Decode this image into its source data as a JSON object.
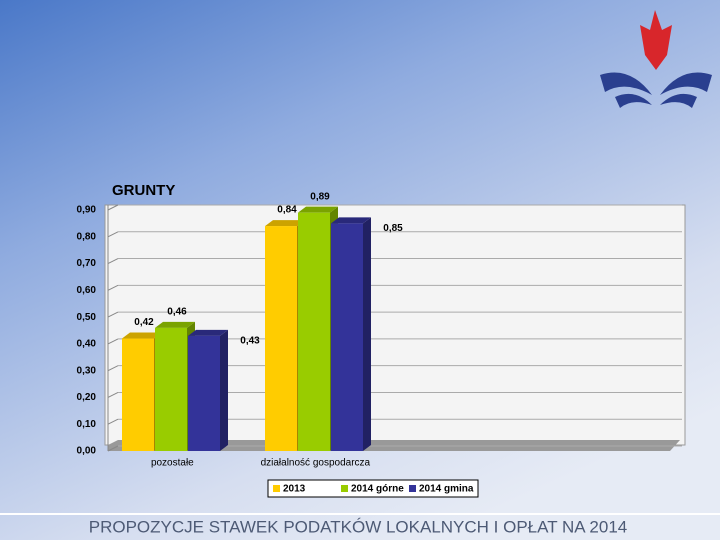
{
  "chart_data": {
    "type": "bar",
    "title": "GRUNTY",
    "categories": [
      "pozostałe",
      "działalność gospodarcza"
    ],
    "series": [
      {
        "name": "2013",
        "color": "#ffcc00",
        "values": [
          0.42,
          0.84
        ],
        "value_labels": [
          "0,42",
          "0,84"
        ]
      },
      {
        "name": "2014 górne",
        "color": "#99cc00",
        "values": [
          0.46,
          0.89
        ],
        "value_labels": [
          "0,46",
          "0,89"
        ]
      },
      {
        "name": "2014 gmina",
        "color": "#333399",
        "values": [
          0.43,
          0.85
        ],
        "value_labels": [
          "0,43",
          "0,85"
        ]
      }
    ],
    "ylim": [
      0,
      0.9
    ],
    "yticks": [
      {
        "value": 0,
        "label": "0,00"
      },
      {
        "value": 0.1,
        "label": "0,10"
      },
      {
        "value": 0.2,
        "label": "0,20"
      },
      {
        "value": 0.3,
        "label": "0,30"
      },
      {
        "value": 0.4,
        "label": "0,40"
      },
      {
        "value": 0.5,
        "label": "0,50"
      },
      {
        "value": 0.6,
        "label": "0,60"
      },
      {
        "value": 0.7,
        "label": "0,70"
      },
      {
        "value": 0.8,
        "label": "0,80"
      },
      {
        "value": 0.9,
        "label": "0,90"
      }
    ],
    "grid": true
  },
  "footer": "PROPOZYCJE STAWEK PODATKÓW LOKALNYCH I OPŁAT NA 2014"
}
